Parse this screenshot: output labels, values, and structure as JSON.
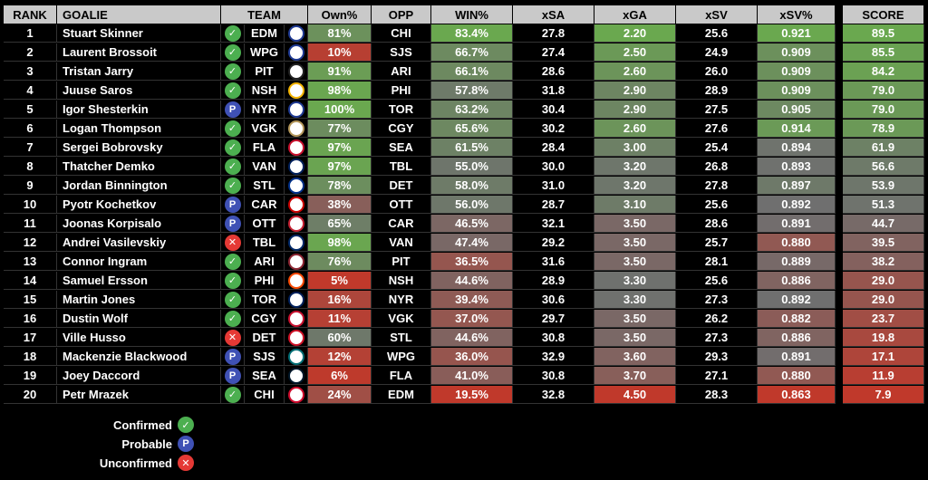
{
  "headers": {
    "rank": "RANK",
    "goalie": "GOALIE",
    "team": "TEAM",
    "own": "Own%",
    "opp": "OPP",
    "win": "WIN%",
    "xsa": "xSA",
    "xga": "xGA",
    "xsv": "xSV",
    "xsvp": "xSV%",
    "score": "SCORE"
  },
  "status_symbols": {
    "confirmed": "✓",
    "probable": "P",
    "unconfirmed": "✕"
  },
  "colors": {
    "green": "#6aa84f",
    "red": "#c0392b",
    "gray": "#6f6f6f"
  },
  "rows": [
    {
      "rank": "1",
      "goalie": "Stuart Skinner",
      "status": "confirmed",
      "team": "EDM",
      "logo_color": "#1f3a93",
      "own": "81%",
      "opp": "CHI",
      "win": "83.4%",
      "xsa": "27.8",
      "xga": "2.20",
      "xsv": "25.6",
      "xsvp": "0.921",
      "score": "89.5"
    },
    {
      "rank": "2",
      "goalie": "Laurent Brossoit",
      "status": "confirmed",
      "team": "WPG",
      "logo_color": "#1f3a93",
      "own": "10%",
      "opp": "SJS",
      "win": "66.7%",
      "xsa": "27.4",
      "xga": "2.50",
      "xsv": "24.9",
      "xsvp": "0.909",
      "score": "85.5"
    },
    {
      "rank": "3",
      "goalie": "Tristan Jarry",
      "status": "confirmed",
      "team": "PIT",
      "logo_color": "#222222",
      "own": "91%",
      "opp": "ARI",
      "win": "66.1%",
      "xsa": "28.6",
      "xga": "2.60",
      "xsv": "26.0",
      "xsvp": "0.909",
      "score": "84.2"
    },
    {
      "rank": "4",
      "goalie": "Juuse Saros",
      "status": "confirmed",
      "team": "NSH",
      "logo_color": "#f4b400",
      "own": "98%",
      "opp": "PHI",
      "win": "57.8%",
      "xsa": "31.8",
      "xga": "2.90",
      "xsv": "28.9",
      "xsvp": "0.909",
      "score": "79.0"
    },
    {
      "rank": "5",
      "goalie": "Igor Shesterkin",
      "status": "probable",
      "team": "NYR",
      "logo_color": "#1f3a93",
      "own": "100%",
      "opp": "TOR",
      "win": "63.2%",
      "xsa": "30.4",
      "xga": "2.90",
      "xsv": "27.5",
      "xsvp": "0.905",
      "score": "79.0"
    },
    {
      "rank": "6",
      "goalie": "Logan Thompson",
      "status": "confirmed",
      "team": "VGK",
      "logo_color": "#b4975a",
      "own": "77%",
      "opp": "CGY",
      "win": "65.6%",
      "xsa": "30.2",
      "xga": "2.60",
      "xsv": "27.6",
      "xsvp": "0.914",
      "score": "78.9"
    },
    {
      "rank": "7",
      "goalie": "Sergei Bobrovsky",
      "status": "confirmed",
      "team": "FLA",
      "logo_color": "#c8102e",
      "own": "97%",
      "opp": "SEA",
      "win": "61.5%",
      "xsa": "28.4",
      "xga": "3.00",
      "xsv": "25.4",
      "xsvp": "0.894",
      "score": "61.9"
    },
    {
      "rank": "8",
      "goalie": "Thatcher Demko",
      "status": "confirmed",
      "team": "VAN",
      "logo_color": "#00205b",
      "own": "97%",
      "opp": "TBL",
      "win": "55.0%",
      "xsa": "30.0",
      "xga": "3.20",
      "xsv": "26.8",
      "xsvp": "0.893",
      "score": "56.6"
    },
    {
      "rank": "9",
      "goalie": "Jordan Binnington",
      "status": "confirmed",
      "team": "STL",
      "logo_color": "#002f87",
      "own": "78%",
      "opp": "DET",
      "win": "58.0%",
      "xsa": "31.0",
      "xga": "3.20",
      "xsv": "27.8",
      "xsvp": "0.897",
      "score": "53.9"
    },
    {
      "rank": "10",
      "goalie": "Pyotr Kochetkov",
      "status": "probable",
      "team": "CAR",
      "logo_color": "#cc0000",
      "own": "38%",
      "opp": "OTT",
      "win": "56.0%",
      "xsa": "28.7",
      "xga": "3.10",
      "xsv": "25.6",
      "xsvp": "0.892",
      "score": "51.3"
    },
    {
      "rank": "11",
      "goalie": "Joonas Korpisalo",
      "status": "probable",
      "team": "OTT",
      "logo_color": "#c52032",
      "own": "65%",
      "opp": "CAR",
      "win": "46.5%",
      "xsa": "32.1",
      "xga": "3.50",
      "xsv": "28.6",
      "xsvp": "0.891",
      "score": "44.7"
    },
    {
      "rank": "12",
      "goalie": "Andrei Vasilevskiy",
      "status": "unconfirmed",
      "team": "TBL",
      "logo_color": "#002868",
      "own": "98%",
      "opp": "VAN",
      "win": "47.4%",
      "xsa": "29.2",
      "xga": "3.50",
      "xsv": "25.7",
      "xsvp": "0.880",
      "score": "39.5"
    },
    {
      "rank": "13",
      "goalie": "Connor Ingram",
      "status": "confirmed",
      "team": "ARI",
      "logo_color": "#8c2633",
      "own": "76%",
      "opp": "PIT",
      "win": "36.5%",
      "xsa": "31.6",
      "xga": "3.50",
      "xsv": "28.1",
      "xsvp": "0.889",
      "score": "38.2"
    },
    {
      "rank": "14",
      "goalie": "Samuel Ersson",
      "status": "confirmed",
      "team": "PHI",
      "logo_color": "#f74902",
      "own": "5%",
      "opp": "NSH",
      "win": "44.6%",
      "xsa": "28.9",
      "xga": "3.30",
      "xsv": "25.6",
      "xsvp": "0.886",
      "score": "29.0"
    },
    {
      "rank": "15",
      "goalie": "Martin Jones",
      "status": "confirmed",
      "team": "TOR",
      "logo_color": "#00205b",
      "own": "16%",
      "opp": "NYR",
      "win": "39.4%",
      "xsa": "30.6",
      "xga": "3.30",
      "xsv": "27.3",
      "xsvp": "0.892",
      "score": "29.0"
    },
    {
      "rank": "16",
      "goalie": "Dustin Wolf",
      "status": "confirmed",
      "team": "CGY",
      "logo_color": "#c8102e",
      "own": "11%",
      "opp": "VGK",
      "win": "37.0%",
      "xsa": "29.7",
      "xga": "3.50",
      "xsv": "26.2",
      "xsvp": "0.882",
      "score": "23.7"
    },
    {
      "rank": "17",
      "goalie": "Ville Husso",
      "status": "unconfirmed",
      "team": "DET",
      "logo_color": "#ce1126",
      "own": "60%",
      "opp": "STL",
      "win": "44.6%",
      "xsa": "30.8",
      "xga": "3.50",
      "xsv": "27.3",
      "xsvp": "0.886",
      "score": "19.8"
    },
    {
      "rank": "18",
      "goalie": "Mackenzie Blackwood",
      "status": "probable",
      "team": "SJS",
      "logo_color": "#006d75",
      "own": "12%",
      "opp": "WPG",
      "win": "36.0%",
      "xsa": "32.9",
      "xga": "3.60",
      "xsv": "29.3",
      "xsvp": "0.891",
      "score": "17.1"
    },
    {
      "rank": "19",
      "goalie": "Joey Daccord",
      "status": "probable",
      "team": "SEA",
      "logo_color": "#001628",
      "own": "6%",
      "opp": "FLA",
      "win": "41.0%",
      "xsa": "30.8",
      "xga": "3.70",
      "xsv": "27.1",
      "xsvp": "0.880",
      "score": "11.9"
    },
    {
      "rank": "20",
      "goalie": "Petr Mrazek",
      "status": "confirmed",
      "team": "CHI",
      "logo_color": "#cf0a2c",
      "own": "24%",
      "opp": "EDM",
      "win": "19.5%",
      "xsa": "32.8",
      "xga": "4.50",
      "xsv": "28.3",
      "xsvp": "0.863",
      "score": "7.9"
    }
  ],
  "legend": [
    {
      "label": "Confirmed",
      "status": "confirmed"
    },
    {
      "label": "Probable",
      "status": "probable"
    },
    {
      "label": "Unconfirmed",
      "status": "unconfirmed"
    }
  ]
}
